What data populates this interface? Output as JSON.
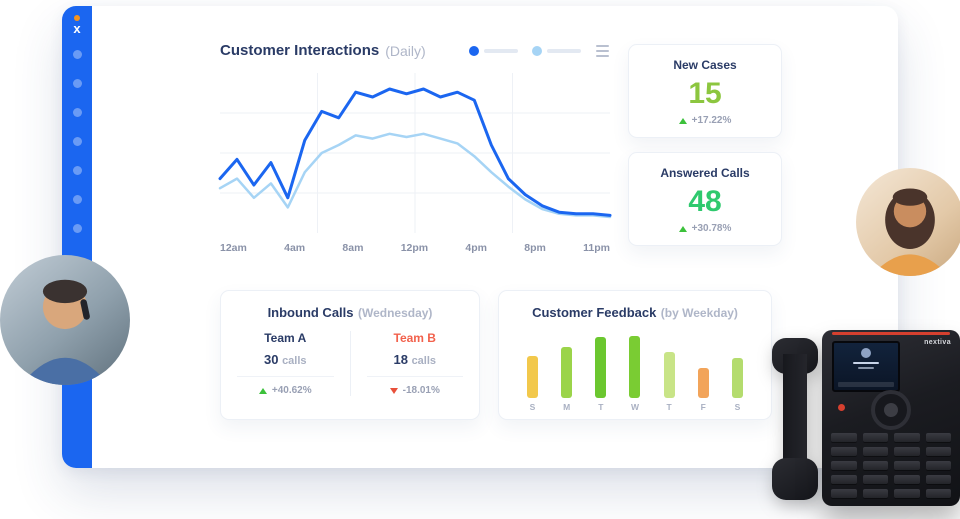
{
  "brand": {
    "logo_letter": "x"
  },
  "sidebar": {
    "nav_dot_count": 7
  },
  "colors": {
    "accent_blue": "#1B66F0",
    "light_series_blue": "#A6D4F5",
    "trend_up_green": "#3CC13B",
    "trend_down_red": "#E8503A",
    "navy_text": "#2A3B66",
    "muted_text": "#99A0B4",
    "team_b_coral": "#F2614C",
    "new_cases_green": "#8CC63F",
    "answered_calls_green": "#2FC96E",
    "logo_dot_orange": "#F7941E"
  },
  "chart_data": [
    {
      "type": "line",
      "title": "Customer Interactions",
      "subtitle": "(Daily)",
      "x_tick_labels": [
        "12am",
        "4am",
        "8am",
        "12pm",
        "4pm",
        "8pm",
        "11pm"
      ],
      "ylim": [
        0,
        100
      ],
      "grid": true,
      "legend_position": "top-right",
      "series": [
        {
          "name": "series-1",
          "color": "#1B66F0",
          "values": [
            34,
            46,
            30,
            44,
            22,
            58,
            76,
            72,
            88,
            85,
            90,
            87,
            90,
            85,
            88,
            83,
            55,
            34,
            24,
            17,
            13,
            12,
            12,
            11
          ]
        },
        {
          "name": "series-2",
          "color": "#A6D4F5",
          "values": [
            28,
            34,
            22,
            31,
            16,
            38,
            50,
            55,
            61,
            59,
            62,
            60,
            62,
            59,
            56,
            48,
            38,
            29,
            21,
            15,
            12,
            11,
            11,
            10
          ]
        }
      ]
    },
    {
      "type": "bar",
      "title": "Customer Feedback",
      "subtitle": "(by Weekday)",
      "categories": [
        "S",
        "M",
        "T",
        "W",
        "T",
        "F",
        "S"
      ],
      "values": [
        52,
        64,
        76,
        78,
        58,
        38,
        50
      ],
      "bar_colors": [
        "#F2C84B",
        "#9BD44A",
        "#6BC72F",
        "#7ACC33",
        "#C8E487",
        "#F2A45A",
        "#B4DC6E"
      ],
      "ylim": [
        0,
        100
      ]
    }
  ],
  "stat_cards": [
    {
      "title": "New Cases",
      "value": "15",
      "value_color": "#8CC63F",
      "change": "+17.22%",
      "trend": "up"
    },
    {
      "title": "Answered Calls",
      "value": "48",
      "value_color": "#2FC96E",
      "change": "+30.78%",
      "trend": "up"
    }
  ],
  "inbound_calls": {
    "title": "Inbound Calls",
    "subtitle": "(Wednesday)",
    "teams": [
      {
        "name": "Team A",
        "name_color": "#2A3B66",
        "value": "30",
        "unit": "calls",
        "change": "+40.62%",
        "trend": "up"
      },
      {
        "name": "Team B",
        "name_color": "#F2614C",
        "value": "18",
        "unit": "calls",
        "change": "-18.01%",
        "trend": "down"
      }
    ]
  },
  "phone": {
    "brand_label": "nextiva"
  }
}
